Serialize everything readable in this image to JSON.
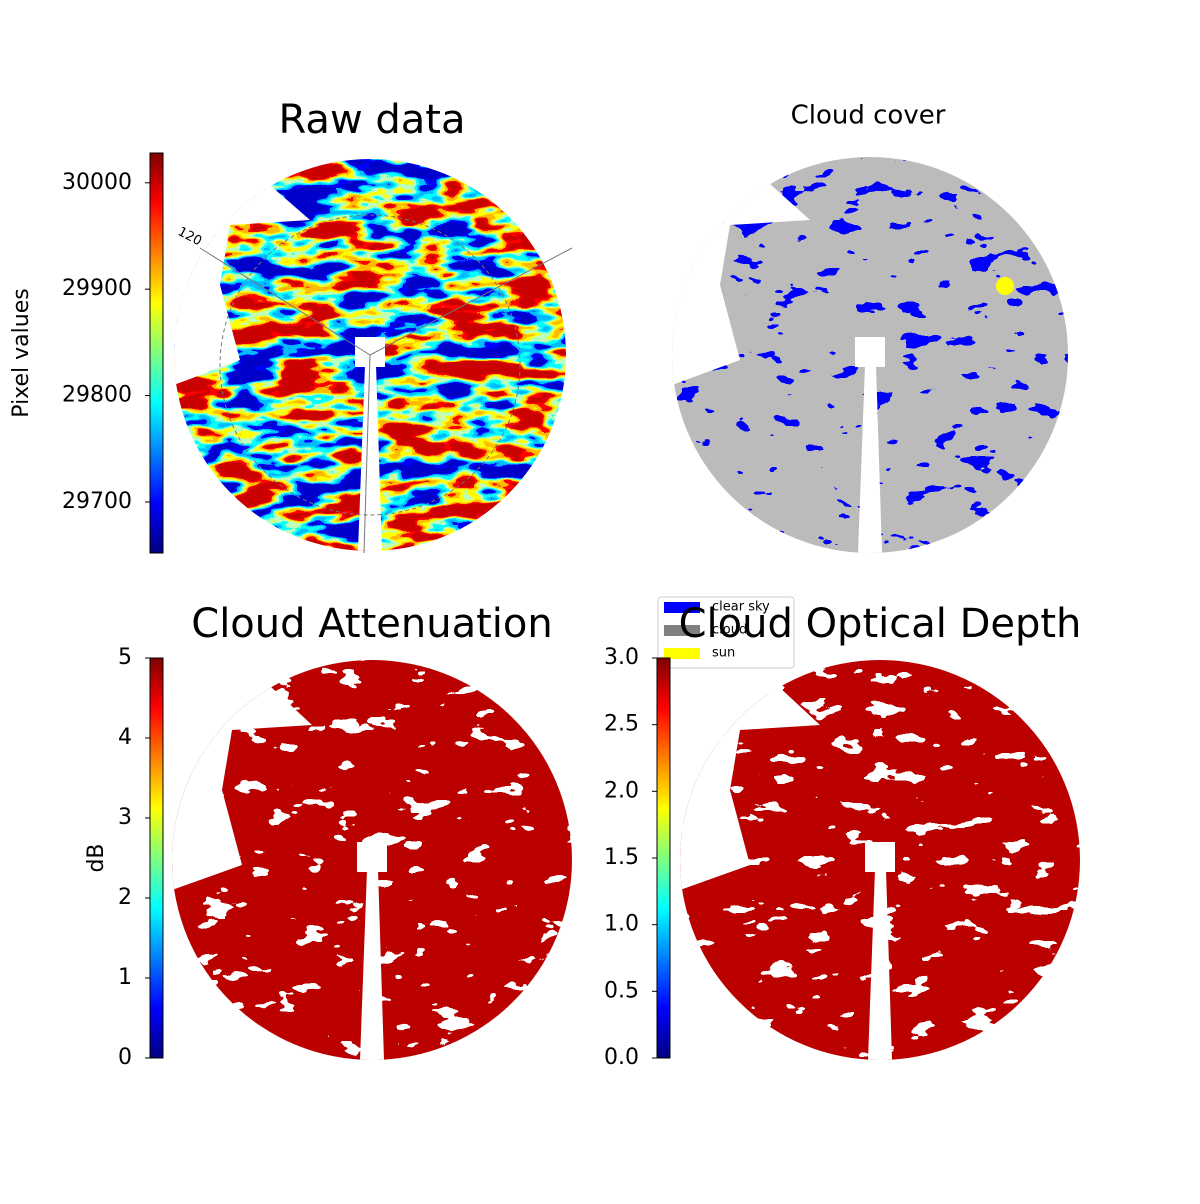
{
  "chart_data": [
    {
      "type": "image",
      "title": "Raw data",
      "ylabel": "Pixel values",
      "colormap": "jet",
      "ylim": [
        29652,
        30028
      ],
      "yticks": [
        29700,
        29800,
        29900,
        30000
      ],
      "annotations": [
        "120"
      ]
    },
    {
      "type": "image",
      "title": "Cloud cover",
      "legend_entries": [
        {
          "name": "clear sky",
          "color": "#0000ff"
        },
        {
          "name": "cloud",
          "color": "#808080"
        },
        {
          "name": "sun",
          "color": "#ffff00"
        }
      ]
    },
    {
      "type": "image",
      "title": "Cloud Attenuation",
      "ylabel": "dB",
      "colormap": "jet",
      "ylim": [
        0,
        5
      ],
      "yticks": [
        0,
        1,
        2,
        3,
        4,
        5
      ]
    },
    {
      "type": "image",
      "title": "Cloud Optical Depth",
      "colormap": "jet",
      "ylim": [
        0,
        3
      ],
      "yticks": [
        {
          "value": 0,
          "label": "0.0"
        },
        0.5,
        {
          "value": 1,
          "label": "1.0"
        },
        1.5,
        {
          "value": 2,
          "label": "2.0"
        },
        2.5,
        {
          "value": 3,
          "label": "3.0"
        }
      ]
    }
  ]
}
